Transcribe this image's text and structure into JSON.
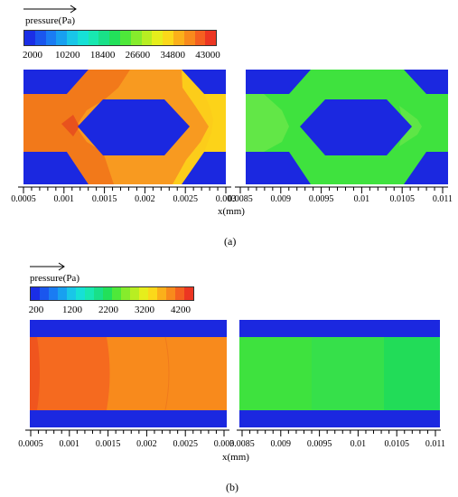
{
  "panel_a": {
    "legend_title": "pressure(Pa)",
    "colorbar_ticks": [
      "2000",
      "10200",
      "18400",
      "26600",
      "34800",
      "43000"
    ],
    "colorbar_colors": [
      "#1a2ee6",
      "#1a56ee",
      "#1a7cf3",
      "#18a0f0",
      "#19c6e8",
      "#16e0d6",
      "#18e8b0",
      "#19e088",
      "#22e05a",
      "#4ee83a",
      "#86ec2c",
      "#b8ee22",
      "#e6ee1c",
      "#fbd81a",
      "#fbb01a",
      "#f88a1c",
      "#f46020",
      "#ec3622"
    ],
    "left_ticks": [
      "0.0005",
      "0.001",
      "0.0015",
      "0.002",
      "0.0025",
      "0.003"
    ],
    "right_ticks": [
      "0.0085",
      "0.009",
      "0.0095",
      "0.01",
      "0.0105",
      "0.011"
    ],
    "xlabel": "x(mm)",
    "panel_label": "(a)",
    "colors": {
      "wall": "#1b28e0",
      "inlet_high": "#f2791a",
      "mid": "#f89a20",
      "outlet": "#fcd319",
      "right": "#3fe23e",
      "right_light": "#6ce84a"
    }
  },
  "panel_b": {
    "legend_title": "pressure(Pa)",
    "colorbar_ticks": [
      "200",
      "1200",
      "2200",
      "3200",
      "4200"
    ],
    "colorbar_colors": [
      "#1a2ee6",
      "#1a56ee",
      "#1a7cf3",
      "#18a0f0",
      "#19c6e8",
      "#16e0d6",
      "#18e8b0",
      "#19e088",
      "#22e05a",
      "#4ee83a",
      "#86ec2c",
      "#b8ee22",
      "#e6ee1c",
      "#fbd81a",
      "#fbb01a",
      "#f88a1c",
      "#f46020",
      "#ec3622"
    ],
    "left_ticks": [
      "0.0005",
      "0.001",
      "0.0015",
      "0.002",
      "0.0025",
      "0.003"
    ],
    "right_ticks": [
      "0.0085",
      "0.009",
      "0.0095",
      "0.01",
      "0.0105",
      "0.011"
    ],
    "xlabel": "x(mm)",
    "panel_label": "(b)",
    "colors": {
      "wall": "#1b28e0",
      "left1": "#f0551e",
      "left2": "#f56a1f",
      "left3": "#f88a1c",
      "right1": "#3ee23e",
      "right2": "#36e04a",
      "right3": "#22dc58"
    }
  }
}
